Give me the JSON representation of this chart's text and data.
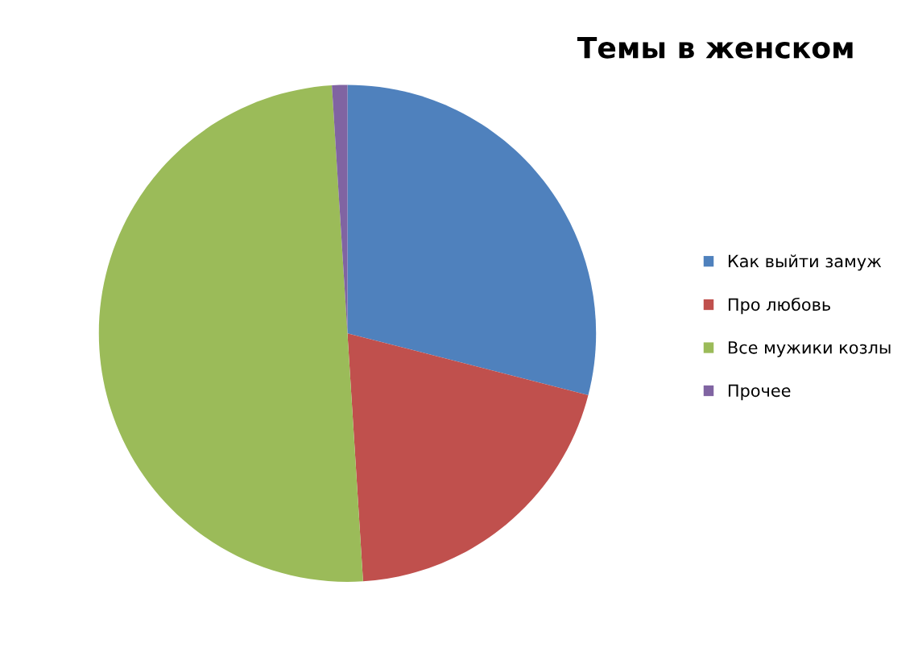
{
  "chart_data": {
    "type": "pie",
    "title": "Темы в женском",
    "categories": [
      "Как выйти замуж",
      "Про любовь",
      "Все мужики козлы",
      "Прочее"
    ],
    "values": [
      29,
      20,
      50,
      1
    ],
    "colors": [
      "#4f81bd",
      "#c0504d",
      "#9bbb59",
      "#8064a2"
    ],
    "legend": "right"
  }
}
